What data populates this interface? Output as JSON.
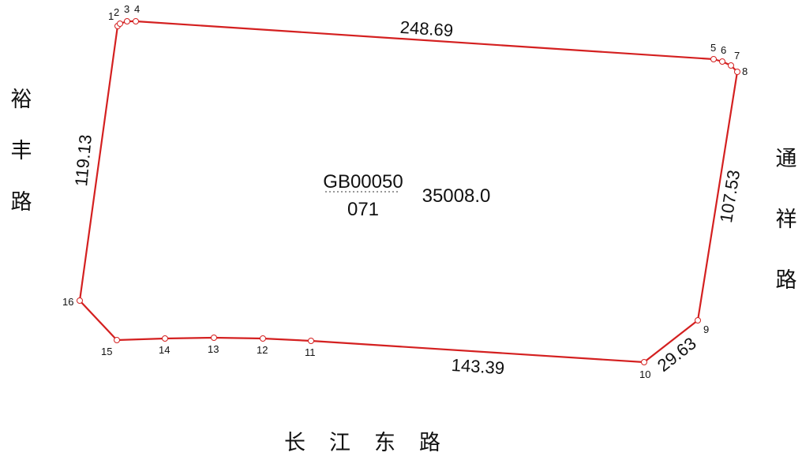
{
  "parcel": {
    "id_line1": "GB00050",
    "id_line2": "071",
    "area": "35008.0",
    "boundary_color": "#d42020",
    "vertex_labels": [
      "1",
      "2",
      "3",
      "4",
      "5",
      "6",
      "7",
      "8",
      "9",
      "10",
      "11",
      "12",
      "13",
      "14",
      "15",
      "16"
    ],
    "edge_lengths": {
      "north": "248.69",
      "east": "107.53",
      "southeast": "29.63",
      "south": "143.39",
      "west": "119.13"
    }
  },
  "roads": {
    "west": [
      "裕",
      "丰",
      "路"
    ],
    "east": [
      "通",
      "祥",
      "路"
    ],
    "south": [
      "长",
      "江",
      "东",
      "路"
    ]
  }
}
